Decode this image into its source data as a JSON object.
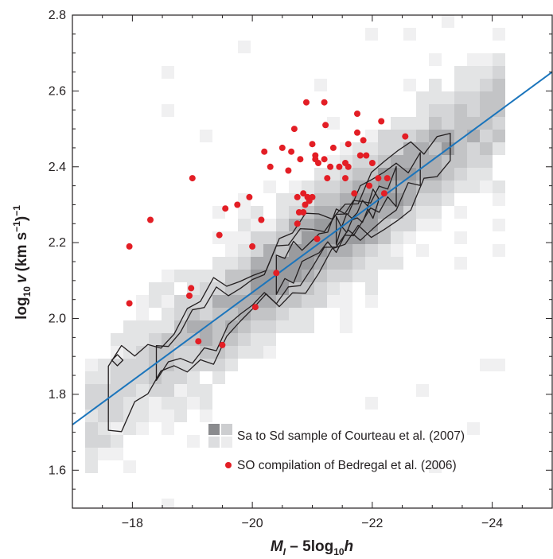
{
  "chart_data": {
    "type": "scatter",
    "title": "",
    "xlabel": {
      "M": "M",
      "M_sub": "I",
      "minus": " – 5log",
      "log_sub": "10",
      "h": "h"
    },
    "ylabel": {
      "log": "log",
      "log_sub": "10",
      "v": "v",
      "units_open": "(km s",
      "units_exp": "−1",
      "units_close": ")",
      "outer_exp": "−1"
    },
    "xlim": [
      -17,
      -25
    ],
    "ylim": [
      1.5,
      2.8
    ],
    "x_reversed": true,
    "grid": false,
    "legend_position": "bottom-right",
    "x_ticks": [
      -18,
      -20,
      -22,
      -24
    ],
    "x_tick_labels": [
      "−18",
      "−20",
      "−22",
      "−24"
    ],
    "y_ticks": [
      1.6,
      1.8,
      2.0,
      2.2,
      2.4,
      2.6,
      2.8
    ],
    "y_tick_labels": [
      "1.6",
      "1.8",
      "2.0",
      "2.2",
      "2.4",
      "2.6",
      "2.8"
    ],
    "colors": {
      "fit_line": "#1b75bc",
      "points": "#e31e25",
      "contour": "#231f20",
      "density_low": "#ececed",
      "density_high": "#8a8b8e"
    },
    "series": [
      {
        "name": "Sa to Sd sample of Courteau et al. (2007)",
        "kind": "density_with_contours"
      },
      {
        "name": "SO compilation of Bedregal et al. (2006)",
        "kind": "scatter",
        "points": [
          [
            -17.95,
            2.19
          ],
          [
            -17.95,
            2.04
          ],
          [
            -18.3,
            2.26
          ],
          [
            -19.0,
            2.37
          ],
          [
            -18.98,
            2.08
          ],
          [
            -18.95,
            2.06
          ],
          [
            -19.1,
            1.94
          ],
          [
            -19.5,
            1.93
          ],
          [
            -19.45,
            2.22
          ],
          [
            -19.55,
            2.29
          ],
          [
            -19.75,
            2.3
          ],
          [
            -19.95,
            2.32
          ],
          [
            -20.0,
            2.19
          ],
          [
            -20.05,
            2.03
          ],
          [
            -20.15,
            2.26
          ],
          [
            -20.2,
            2.44
          ],
          [
            -20.3,
            2.4
          ],
          [
            -20.4,
            2.12
          ],
          [
            -20.5,
            2.45
          ],
          [
            -20.6,
            2.39
          ],
          [
            -20.65,
            2.44
          ],
          [
            -20.7,
            2.5
          ],
          [
            -20.75,
            2.25
          ],
          [
            -20.75,
            2.32
          ],
          [
            -20.78,
            2.28
          ],
          [
            -20.8,
            2.42
          ],
          [
            -20.85,
            2.33
          ],
          [
            -20.85,
            2.28
          ],
          [
            -20.88,
            2.3
          ],
          [
            -20.9,
            2.57
          ],
          [
            -20.92,
            2.32
          ],
          [
            -20.95,
            2.31
          ],
          [
            -21.0,
            2.46
          ],
          [
            -21.0,
            2.32
          ],
          [
            -21.05,
            2.43
          ],
          [
            -21.05,
            2.42
          ],
          [
            -21.1,
            2.41
          ],
          [
            -21.08,
            2.21
          ],
          [
            -21.2,
            2.57
          ],
          [
            -21.2,
            2.42
          ],
          [
            -21.22,
            2.51
          ],
          [
            -21.25,
            2.37
          ],
          [
            -21.3,
            2.4
          ],
          [
            -21.35,
            2.45
          ],
          [
            -21.45,
            2.4
          ],
          [
            -21.55,
            2.41
          ],
          [
            -21.55,
            2.37
          ],
          [
            -21.6,
            2.46
          ],
          [
            -21.6,
            2.4
          ],
          [
            -21.7,
            2.33
          ],
          [
            -21.75,
            2.54
          ],
          [
            -21.75,
            2.49
          ],
          [
            -21.8,
            2.43
          ],
          [
            -21.85,
            2.47
          ],
          [
            -21.9,
            2.43
          ],
          [
            -21.95,
            2.35
          ],
          [
            -22.0,
            2.41
          ],
          [
            -22.1,
            2.37
          ],
          [
            -22.15,
            2.52
          ],
          [
            -22.2,
            2.33
          ],
          [
            -22.25,
            2.37
          ],
          [
            -22.55,
            2.48
          ]
        ]
      },
      {
        "kind": "line",
        "x": [
          -17,
          -25
        ],
        "y": [
          1.72,
          2.65
        ]
      }
    ],
    "legend": [
      {
        "label": "Sa to Sd sample of Courteau et al. (2007)",
        "marker": "grey-squares"
      },
      {
        "label": "SO compilation of Bedregal et al. (2006)",
        "marker": "red-dot"
      }
    ]
  }
}
